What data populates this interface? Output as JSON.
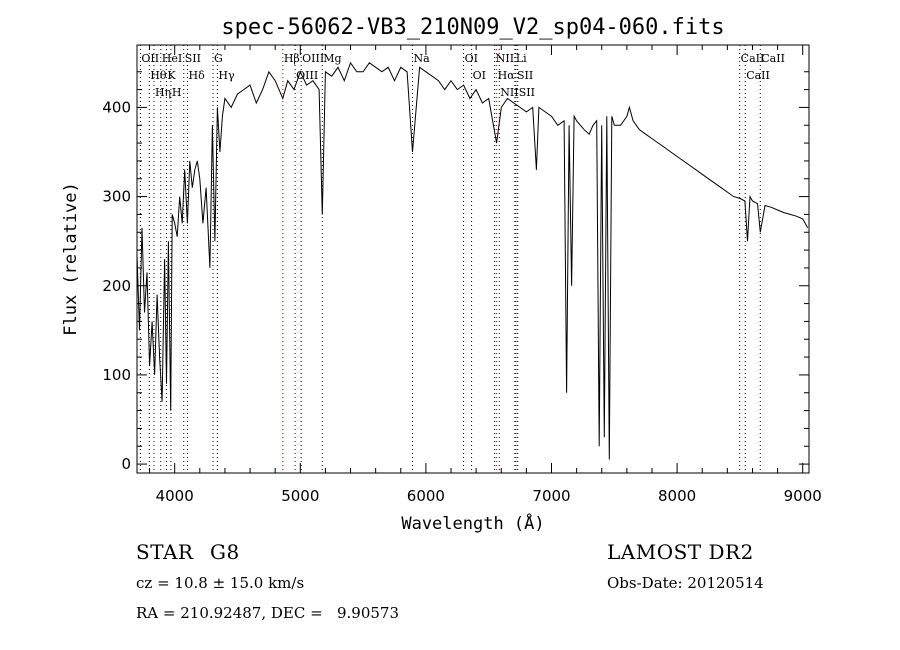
{
  "chart_data": {
    "type": "line",
    "title": "spec-56062-VB3_210N09_V2_sp04-060.fits",
    "xlabel": "Wavelength (Å)",
    "ylabel": "Flux (relative)",
    "xlim": [
      3700,
      9050
    ],
    "ylim": [
      -10,
      470
    ],
    "x_ticks": [
      4000,
      5000,
      6000,
      7000,
      8000,
      9000
    ],
    "y_ticks": [
      0,
      100,
      200,
      300,
      400
    ],
    "grid": false,
    "series": [
      {
        "x": [
          3700,
          3720,
          3740,
          3760,
          3780,
          3800,
          3820,
          3840,
          3860,
          3880,
          3900,
          3920,
          3935,
          3950,
          3968,
          3980,
          4000,
          4020,
          4040,
          4060,
          4080,
          4101,
          4120,
          4140,
          4160,
          4180,
          4200,
          4225,
          4250,
          4280,
          4300,
          4320,
          4340,
          4360,
          4380,
          4400,
          4450,
          4500,
          4550,
          4600,
          4650,
          4700,
          4750,
          4800,
          4861,
          4900,
          4950,
          5000,
          5050,
          5100,
          5150,
          5175,
          5200,
          5250,
          5300,
          5350,
          5400,
          5450,
          5500,
          5550,
          5600,
          5650,
          5700,
          5750,
          5800,
          5850,
          5893,
          5950,
          6000,
          6050,
          6100,
          6150,
          6200,
          6250,
          6300,
          6350,
          6400,
          6450,
          6500,
          6563,
          6600,
          6650,
          6700,
          6750,
          6800,
          6850,
          6880,
          6900,
          6950,
          7000,
          7050,
          7100,
          7120,
          7140,
          7160,
          7180,
          7200,
          7230,
          7260,
          7300,
          7330,
          7360,
          7380,
          7400,
          7420,
          7440,
          7460,
          7480,
          7500,
          7550,
          7600,
          7620,
          7650,
          7700,
          7750,
          7800,
          7850,
          7900,
          7950,
          8000,
          8050,
          8100,
          8150,
          8200,
          8250,
          8300,
          8350,
          8400,
          8450,
          8500,
          8540,
          8560,
          8580,
          8600,
          8640,
          8662,
          8700,
          8750,
          8800,
          8850,
          8900,
          8950,
          9000,
          9040
        ],
        "y": [
          235,
          150,
          265,
          170,
          215,
          110,
          160,
          100,
          190,
          120,
          70,
          230,
          90,
          250,
          60,
          280,
          270,
          255,
          300,
          270,
          330,
          270,
          340,
          310,
          330,
          340,
          320,
          270,
          310,
          220,
          380,
          250,
          400,
          350,
          390,
          410,
          400,
          415,
          420,
          425,
          405,
          420,
          440,
          430,
          410,
          430,
          420,
          440,
          425,
          430,
          420,
          280,
          440,
          435,
          445,
          430,
          450,
          440,
          440,
          450,
          445,
          440,
          445,
          430,
          445,
          440,
          350,
          445,
          440,
          435,
          430,
          420,
          430,
          420,
          425,
          410,
          420,
          405,
          410,
          360,
          400,
          410,
          405,
          400,
          395,
          400,
          330,
          400,
          395,
          390,
          380,
          385,
          80,
          380,
          200,
          390,
          385,
          380,
          375,
          370,
          380,
          385,
          20,
          380,
          30,
          390,
          5,
          390,
          380,
          380,
          390,
          400,
          385,
          375,
          370,
          365,
          360,
          355,
          350,
          345,
          340,
          335,
          330,
          325,
          320,
          315,
          310,
          305,
          300,
          298,
          295,
          250,
          300,
          295,
          292,
          260,
          290,
          288,
          285,
          282,
          280,
          278,
          275,
          265
        ]
      }
    ],
    "lines": [
      {
        "wavelength": 3727,
        "label": "OII",
        "color": "#000000"
      },
      {
        "wavelength": 3798,
        "label": "Hθ",
        "color": "#000000"
      },
      {
        "wavelength": 3835,
        "label": "Hη",
        "color": "#000000"
      },
      {
        "wavelength": 3889,
        "label": "HeI",
        "color": "#000000"
      },
      {
        "wavelength": 3934,
        "label": "K",
        "color": "#000000"
      },
      {
        "wavelength": 3970,
        "label": "H",
        "color": "#000000"
      },
      {
        "wavelength": 4072,
        "label": "SII",
        "color": "#000000"
      },
      {
        "wavelength": 4102,
        "label": "Hδ",
        "color": "#000000"
      },
      {
        "wavelength": 4305,
        "label": "G",
        "color": "#000000"
      },
      {
        "wavelength": 4340,
        "label": "Hγ",
        "color": "#000000"
      },
      {
        "wavelength": 4861,
        "label": "Hβ",
        "color": "#cc0000"
      },
      {
        "wavelength": 4959,
        "label": "OIII",
        "color": "#000000"
      },
      {
        "wavelength": 5007,
        "label": "OIII",
        "color": "#000000"
      },
      {
        "wavelength": 5175,
        "label": "Mg",
        "color": "#000000"
      },
      {
        "wavelength": 5893,
        "label": "Na",
        "color": "#000000"
      },
      {
        "wavelength": 6300,
        "label": "OI",
        "color": "#000000"
      },
      {
        "wavelength": 6364,
        "label": "OI",
        "color": "#000000"
      },
      {
        "wavelength": 6548,
        "label": "NII",
        "color": "#000000"
      },
      {
        "wavelength": 6563,
        "label": "Hα",
        "color": "#cc0000"
      },
      {
        "wavelength": 6584,
        "label": "NII",
        "color": "#000000"
      },
      {
        "wavelength": 6708,
        "label": "Li",
        "color": "#000000"
      },
      {
        "wavelength": 6717,
        "label": "SII",
        "color": "#000000"
      },
      {
        "wavelength": 6731,
        "label": "SII",
        "color": "#000000"
      },
      {
        "wavelength": 8498,
        "label": "CaII",
        "color": "#000000"
      },
      {
        "wavelength": 8542,
        "label": "CaII",
        "color": "#000000"
      },
      {
        "wavelength": 8662,
        "label": "CaII",
        "color": "#000000"
      }
    ]
  },
  "info": {
    "class_label": "STAR",
    "subclass": "G8",
    "survey": "LAMOST DR2",
    "cz_line": "cz = 10.8 ± 15.0 km/s",
    "obs_date": "Obs-Date: 20120514",
    "coords": "RA = 210.92487, DEC =   9.90573"
  }
}
